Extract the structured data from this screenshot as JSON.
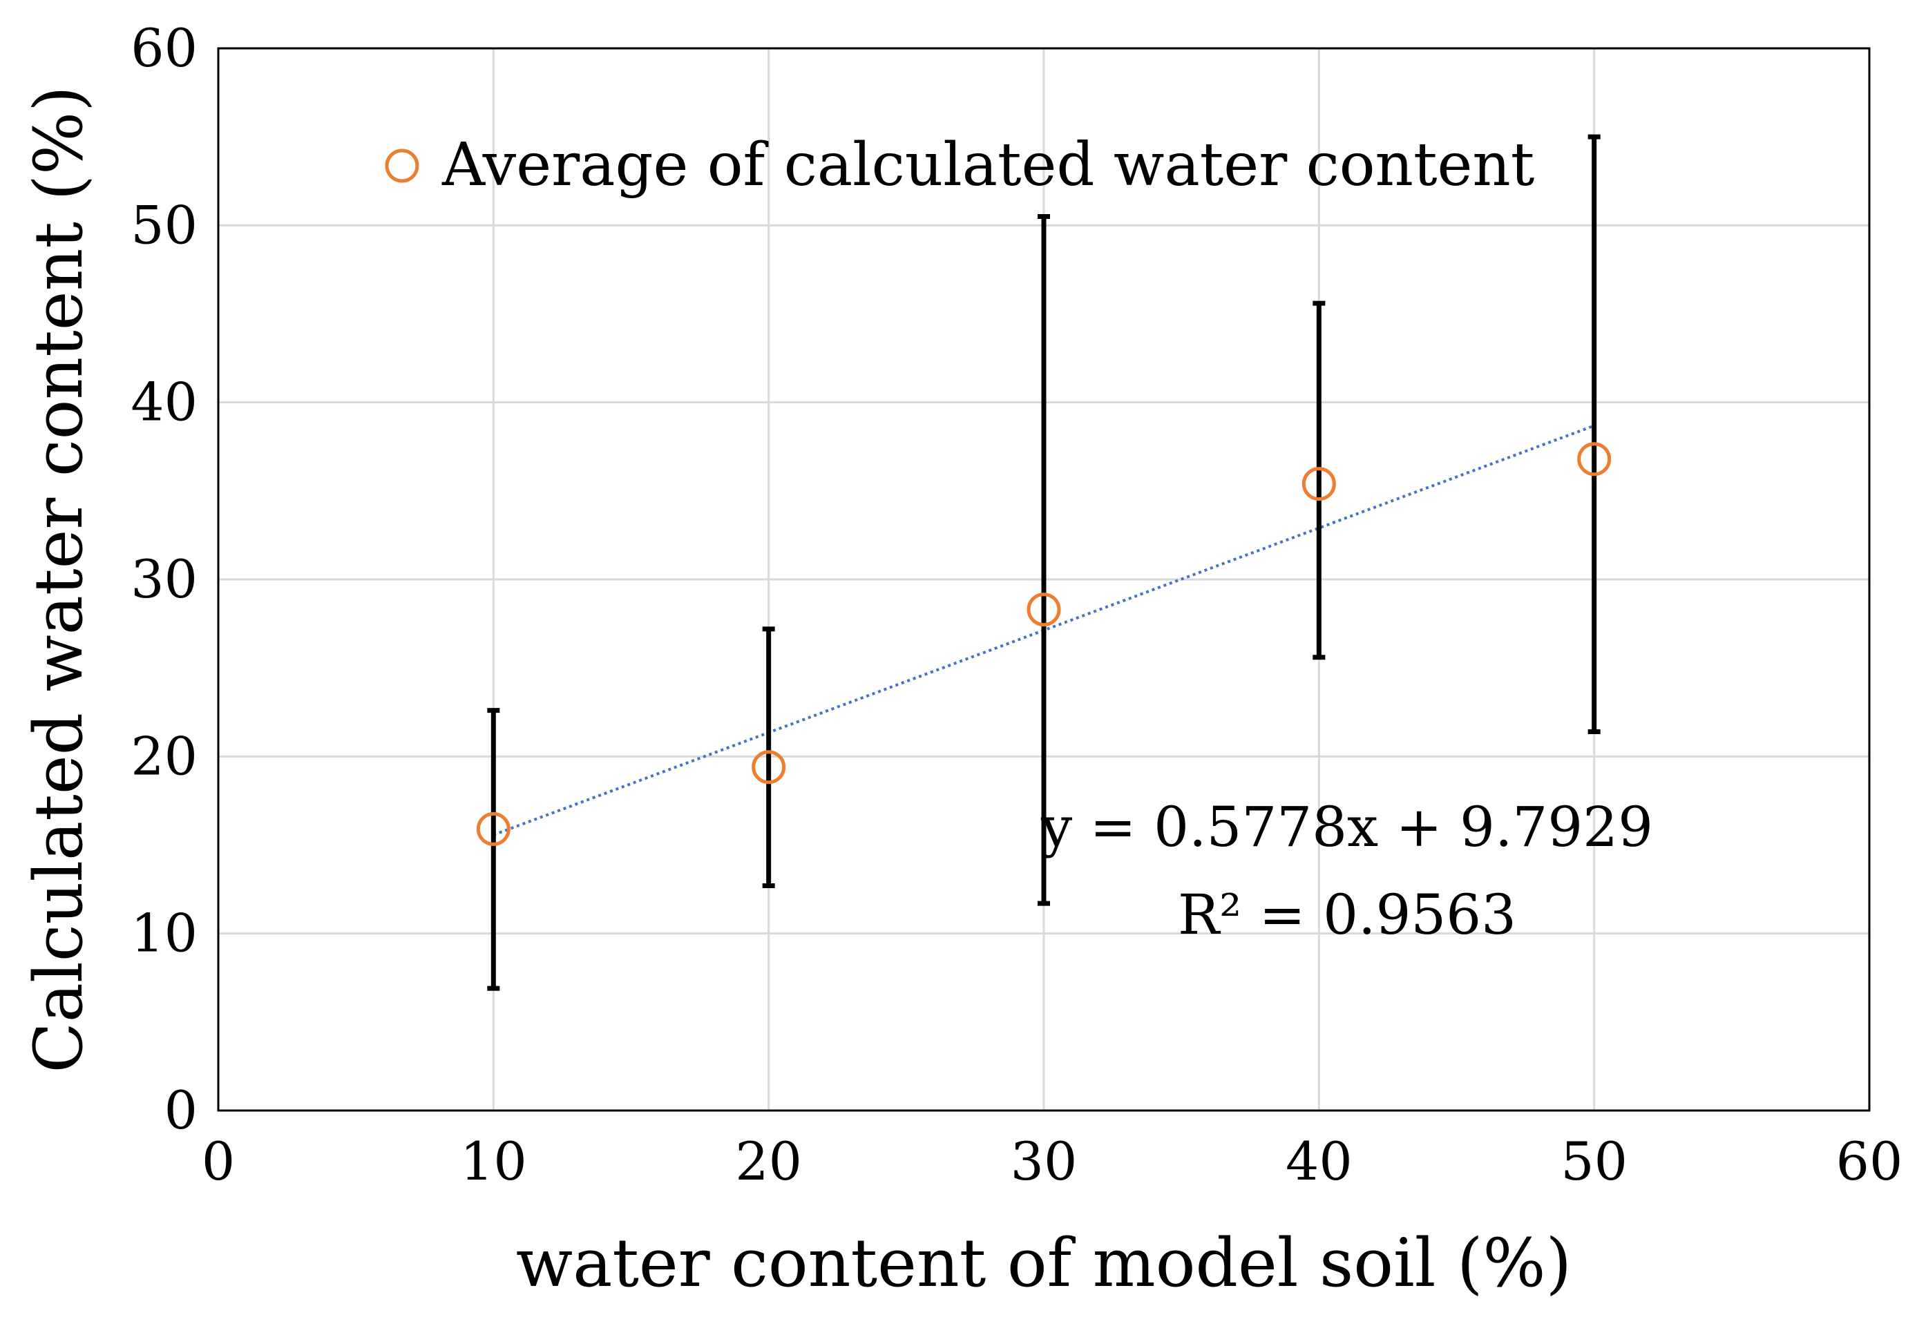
{
  "chart_data": {
    "type": "scatter",
    "title": "",
    "xlabel": "water content of model soil (%)",
    "ylabel": "Calculated water content (%)",
    "xlim": [
      0,
      60
    ],
    "ylim": [
      0,
      60
    ],
    "xticks": [
      0,
      10,
      20,
      30,
      40,
      50,
      60
    ],
    "yticks": [
      0,
      10,
      20,
      30,
      40,
      50,
      60
    ],
    "grid": true,
    "legend": {
      "position": "top-left",
      "entries": [
        "Average of calculated water content"
      ]
    },
    "series": [
      {
        "name": "Average of calculated water content",
        "marker": "open-circle",
        "color": "#ED7D31",
        "x": [
          10,
          20,
          30,
          40,
          50
        ],
        "y": [
          15.9,
          19.4,
          28.3,
          35.4,
          36.8
        ],
        "error_low": [
          6.9,
          12.7,
          11.7,
          25.6,
          21.4
        ],
        "error_high": [
          22.6,
          27.2,
          50.5,
          45.6,
          55.0
        ]
      }
    ],
    "trendline": {
      "type": "linear",
      "slope": 0.5778,
      "intercept": 9.7929,
      "x_range": [
        10,
        50
      ],
      "color": "#4472C4",
      "style": "dotted",
      "equation": "y = 0.5778x + 9.7929",
      "r2_label": "R² = 0.9563"
    }
  },
  "colors": {
    "marker": "#ED7D31",
    "trendline": "#4472C4",
    "error_bar": "#000000",
    "grid": "#d9d9d9",
    "axis": "#000000"
  }
}
